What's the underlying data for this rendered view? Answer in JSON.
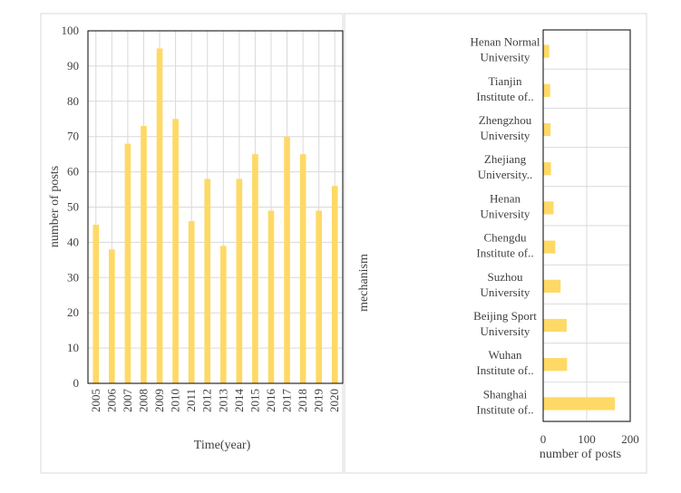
{
  "chart_data": [
    {
      "type": "bar",
      "orientation": "vertical",
      "categories": [
        "2005",
        "2006",
        "2007",
        "2008",
        "2009",
        "2010",
        "2011",
        "2012",
        "2013",
        "2014",
        "2015",
        "2016",
        "2017",
        "2018",
        "2019",
        "2020"
      ],
      "values": [
        45,
        38,
        68,
        73,
        95,
        75,
        46,
        58,
        39,
        58,
        65,
        49,
        70,
        65,
        49,
        56
      ],
      "xlabel": "Time(year)",
      "ylabel": "number of posts",
      "ylim": [
        0,
        100
      ],
      "yticks": [
        0,
        10,
        20,
        30,
        40,
        50,
        60,
        70,
        80,
        90,
        100
      ],
      "grid": true,
      "bar_color": "#FFD966"
    },
    {
      "type": "bar",
      "orientation": "horizontal",
      "categories": [
        [
          "Henan Normal",
          "University"
        ],
        [
          "Tianjin",
          "Institute of.."
        ],
        [
          "Zhengzhou",
          "University"
        ],
        [
          "Zhejiang",
          "University.."
        ],
        [
          "Henan",
          "University"
        ],
        [
          "Chengdu",
          "Institute of.."
        ],
        [
          "Suzhou",
          "University"
        ],
        [
          "Beijing Sport",
          "University"
        ],
        [
          "Wuhan",
          "Institute of.."
        ],
        [
          "Shanghai",
          "Institute of.."
        ]
      ],
      "values": [
        14,
        16,
        17,
        18,
        24,
        28,
        40,
        54,
        55,
        165
      ],
      "xlabel": "number of  posts",
      "ylabel": "mechanism",
      "xlim": [
        0,
        200
      ],
      "xticks": [
        0,
        100,
        200
      ],
      "grid": true,
      "bar_color": "#FFD966"
    }
  ]
}
